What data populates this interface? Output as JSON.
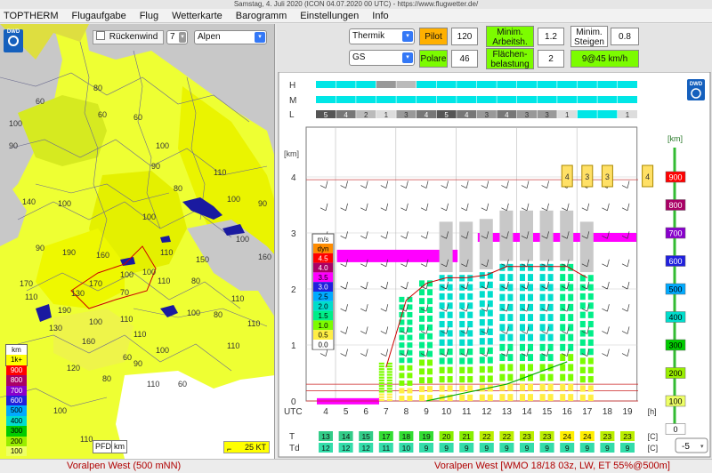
{
  "window": {
    "title": "Samstag, 4. Juli 2020 (ICON 04.07.2020 00 UTC) - https://www.flugwetter.de/"
  },
  "menu": [
    "TOPTHERM",
    "Flugaufgabe",
    "Flug",
    "Wetterkarte",
    "Barogramm",
    "Einstellungen",
    "Info"
  ],
  "map": {
    "logo": "DWD",
    "tailwind_label": "Rückenwind",
    "tailwind_value": "7",
    "region_value": "Alpen",
    "contour_labels": [
      "90",
      "80",
      "60",
      "60",
      "60",
      "90",
      "100",
      "80",
      "110",
      "100",
      "100",
      "90",
      "190",
      "170",
      "160",
      "100",
      "110",
      "150",
      "170",
      "110",
      "190",
      "100",
      "130",
      "160",
      "70",
      "110",
      "80",
      "110",
      "80",
      "110",
      "120",
      "80",
      "60",
      "100",
      "100",
      "110",
      "110",
      "110",
      "90",
      "60",
      "140",
      "100",
      "130",
      "110",
      "100",
      "90",
      "110",
      "160",
      "100",
      "100",
      "100"
    ],
    "pfd_label": "PFD",
    "km_label": "km",
    "scale_label": "25 KT",
    "legend": {
      "unit": "km",
      "items": [
        {
          "label": "1k+",
          "color": "#ffff00"
        },
        {
          "label": "900",
          "color": "#ff0000"
        },
        {
          "label": "800",
          "color": "#aa0066"
        },
        {
          "label": "700",
          "color": "#8800cc"
        },
        {
          "label": "600",
          "color": "#2020dd"
        },
        {
          "label": "500",
          "color": "#00aaff"
        },
        {
          "label": "400",
          "color": "#00ddcc"
        },
        {
          "label": "300",
          "color": "#00cc00"
        },
        {
          "label": "200",
          "color": "#99ee00"
        },
        {
          "label": "100",
          "color": "#eeff66"
        }
      ]
    }
  },
  "params": {
    "mode": "Thermik",
    "glider": "GS",
    "pilot_label": "Pilot",
    "pilot_value": "120",
    "polare_label": "Polare",
    "polare_value": "46",
    "min_arbeit_label1": "Minim.",
    "min_arbeit_label2": "Arbeitsh.",
    "min_arbeit_value": "1.2",
    "flaeche_label1": "Flächen-",
    "flaeche_label2": "belastung",
    "flaeche_value": "2",
    "min_steigen_label1": "Minim.",
    "min_steigen_label2": "Steigen",
    "min_steigen_value": "0.8",
    "result": "9@45 km/h"
  },
  "chart_data": {
    "type": "heatmap",
    "logo": "DWD",
    "y_unit": "[km]",
    "x_unit": "[h]",
    "x_label": "UTC",
    "x": [
      4,
      5,
      6,
      7,
      8,
      9,
      10,
      11,
      12,
      13,
      14,
      15,
      16,
      17,
      18,
      19
    ],
    "yticks": [
      0,
      1,
      2,
      3,
      4
    ],
    "ylim": [
      0,
      4.9
    ],
    "cloud_rows": {
      "labels": [
        "H",
        "M",
        "L"
      ],
      "M_values": [
        0,
        0,
        0,
        0,
        0,
        0,
        0,
        0,
        0,
        0,
        0,
        0,
        0,
        0,
        0,
        0
      ],
      "L_values": [
        5,
        4,
        2,
        1,
        3,
        4,
        5,
        4,
        3,
        4,
        3,
        3,
        1,
        0,
        0,
        1
      ]
    },
    "convective_cloud_labels": [
      4,
      3,
      3,
      4
    ],
    "convective_cloud_hours": [
      16,
      17,
      18,
      20
    ],
    "legend_ms": {
      "title": "m/s",
      "items": [
        {
          "label": "dyn",
          "color": "#ff8c00"
        },
        {
          "label": "4.5",
          "color": "#ff0000"
        },
        {
          "label": "4.0",
          "color": "#aa0066"
        },
        {
          "label": "3.5",
          "color": "#ff00ff"
        },
        {
          "label": "3.0",
          "color": "#2020dd"
        },
        {
          "label": "2.5",
          "color": "#00aaff"
        },
        {
          "label": "2.0",
          "color": "#00ddcc"
        },
        {
          "label": "1.5",
          "color": "#00ee88"
        },
        {
          "label": "1.0",
          "color": "#7cfc00"
        },
        {
          "label": "0.5",
          "color": "#ffee44"
        },
        {
          "label": "0.0",
          "color": "#ffffff"
        }
      ]
    },
    "altitude_scale": [
      {
        "label": "900",
        "color": "#ff0000"
      },
      {
        "label": "800",
        "color": "#aa0066"
      },
      {
        "label": "700",
        "color": "#8800cc"
      },
      {
        "label": "600",
        "color": "#2020dd"
      },
      {
        "label": "500",
        "color": "#00aaff"
      },
      {
        "label": "400",
        "color": "#00ddcc"
      },
      {
        "label": "300",
        "color": "#00cc00"
      },
      {
        "label": "200",
        "color": "#99ee00"
      },
      {
        "label": "100",
        "color": "#eeff66"
      },
      {
        "label": "0",
        "color": "#ffffff"
      }
    ],
    "alt_unit": "[km]",
    "thermal_top_km": [
      0,
      0,
      0,
      0.7,
      1.9,
      2.2,
      2.3,
      2.3,
      2.35,
      2.5,
      2.5,
      2.5,
      2.5,
      2.3,
      0,
      0
    ],
    "thermal_strength": [
      0,
      0,
      0.5,
      1.0,
      1.5,
      1.5,
      2.0,
      2.0,
      2.0,
      2.0,
      2.0,
      2.0,
      1.5,
      1.5,
      0,
      0
    ],
    "T": [
      13,
      14,
      15,
      17,
      18,
      19,
      20,
      21,
      22,
      22,
      23,
      23,
      24,
      24,
      23,
      23
    ],
    "Td": [
      12,
      12,
      12,
      11,
      10,
      9,
      9,
      9,
      9,
      9,
      9,
      9,
      9,
      9,
      9,
      9
    ],
    "T_label": "T",
    "Td_label": "Td",
    "temp_unit": "[C]",
    "offset_value": "-5"
  },
  "status": {
    "left": "Voralpen West (500 mNN)",
    "right": "Voralpen West [WMO 18/18 03z, LW, ET  55%@500m]"
  }
}
